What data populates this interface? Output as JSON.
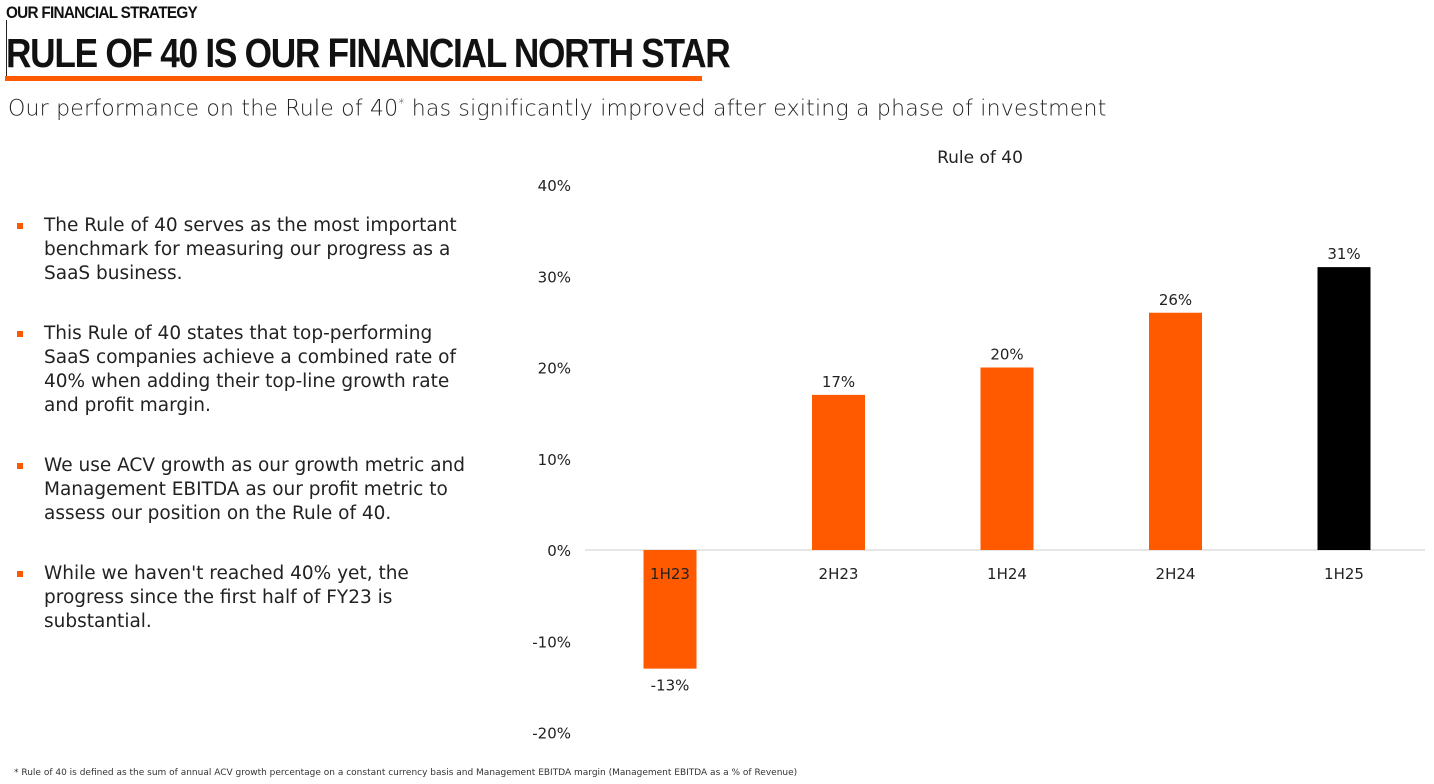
{
  "header": {
    "kicker": "OUR FINANCIAL STRATEGY",
    "title": "RULE OF 40 IS OUR FINANCIAL NORTH STAR",
    "subtitle_main": "Our performance on the Rule of 40",
    "subtitle_mark": "*",
    "subtitle_rest": " has significantly improved after exiting a phase of investment"
  },
  "bullets": [
    "The Rule of 40 serves as the most important benchmark for measuring our progress as a SaaS business.",
    "This Rule of 40 states that top-performing SaaS companies achieve a combined rate of 40% when adding their top-line growth rate and profit margin.",
    "We use ACV growth as our growth metric and Management EBITDA as our profit metric to assess our position on the Rule of 40.",
    "While we haven't reached 40% yet, the progress since the first half of FY23 is substantial."
  ],
  "footnote": "* Rule of 40 is defined as the sum of annual ACV growth percentage on a constant currency basis and Management EBITDA margin (Management EBITDA as a % of Revenue)",
  "colors": {
    "accent": "#ff5a00",
    "highlight": "#000000"
  },
  "chart_data": {
    "type": "bar",
    "title": "Rule of 40",
    "xlabel": "",
    "ylabel": "",
    "categories": [
      "1H23",
      "2H23",
      "1H24",
      "2H24",
      "1H25"
    ],
    "values": [
      -13,
      17,
      20,
      26,
      31
    ],
    "data_labels": [
      "-13%",
      "17%",
      "20%",
      "26%",
      "31%"
    ],
    "bar_colors": [
      "#ff5a00",
      "#ff5a00",
      "#ff5a00",
      "#ff5a00",
      "#000000"
    ],
    "ylim": [
      -20,
      40
    ],
    "yticks": [
      -20,
      -10,
      0,
      10,
      20,
      30,
      40
    ],
    "ytick_labels": [
      "-20%",
      "-10%",
      "0%",
      "10%",
      "20%",
      "30%",
      "40%"
    ],
    "grid": false,
    "legend": "none"
  }
}
